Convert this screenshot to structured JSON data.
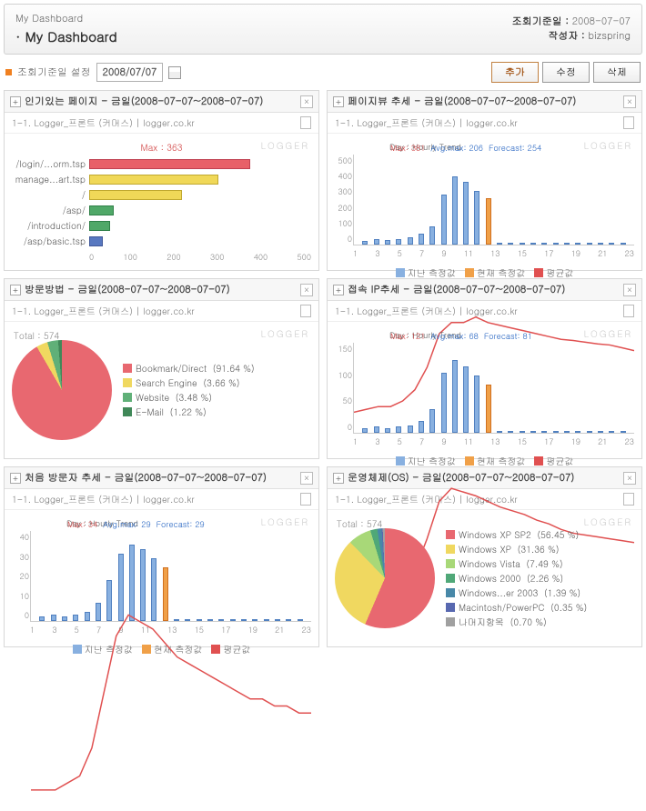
{
  "header": {
    "breadcrumb": "My Dashboard",
    "title": "My Dashboard",
    "refDateLabel": "조회기준일 :",
    "refDate": "2008-07-07",
    "authorLabel": "작성자 :",
    "author": "bizspring"
  },
  "toolbar": {
    "dateLabel": "조회기준일 설정",
    "dateValue": "2008/07/07",
    "add": "추가",
    "edit": "수정",
    "del": "삭제"
  },
  "watermark": "LOGGER",
  "panels": {
    "p1": {
      "title": "인기있는 페이지 - 금일(2008-07-07~2008-07-07)",
      "sub": "1-1. Logger_프론트 (커머스) | logger.co.kr",
      "maxLabel": "Max : 363",
      "bars": [
        {
          "label": "/login/...orm.tsp",
          "value": 363,
          "color": "#e86068",
          "border": "#c04050"
        },
        {
          "label": "manage...art.tsp",
          "value": 290,
          "color": "#f0d858",
          "border": "#c0a830"
        },
        {
          "label": "/",
          "value": 210,
          "color": "#f0d858",
          "border": "#c0a830"
        },
        {
          "label": "/asp/",
          "value": 55,
          "color": "#50a868",
          "border": "#308048"
        },
        {
          "label": "/introduction/",
          "value": 48,
          "color": "#50a868",
          "border": "#308048"
        },
        {
          "label": "/asp/basic.tsp",
          "value": 30,
          "color": "#5878c0",
          "border": "#405898"
        }
      ],
      "axisMax": 500,
      "axisTicks": [
        "0",
        "100",
        "200",
        "300",
        "400",
        "500"
      ]
    },
    "p2": {
      "title": "페이지뷰 추세 - 금일(2008-07-07~2008-07-07)",
      "sub": "1-1. Logger_프론트 (커머스) | logger.co.kr",
      "trendLabel": "Day : Hourly Trend",
      "stats": [
        {
          "t": "Max: 381",
          "c": "#d04040"
        },
        {
          "t": "Avg.max: 206",
          "c": "#2060c0"
        },
        {
          "t": "Forecast: 254",
          "c": "#2060c0"
        }
      ],
      "yMax": 500,
      "yTicks": [
        "0",
        "100",
        "200",
        "300",
        "400",
        "500"
      ],
      "xTicks": [
        "1",
        "3",
        "5",
        "7",
        "9",
        "11",
        "13",
        "15",
        "17",
        "19",
        "21",
        "23"
      ],
      "bars": [
        20,
        30,
        25,
        30,
        40,
        60,
        100,
        280,
        381,
        350,
        300,
        260,
        0,
        0,
        0,
        0,
        0,
        0,
        0,
        0,
        0,
        0,
        0,
        0
      ],
      "currentIdx": 11,
      "line": [
        40,
        45,
        50,
        50,
        60,
        80,
        120,
        180,
        200,
        200,
        210,
        200,
        195,
        190,
        185,
        180,
        175,
        170,
        168,
        165,
        162,
        160,
        155,
        150
      ],
      "barColor": "#88b0e0",
      "barBorder": "#5080c0",
      "curColor": "#f0a048",
      "lineColor": "#e05050"
    },
    "p3": {
      "title": "방문방법 - 금일(2008-07-07~2008-07-07)",
      "sub": "1-1. Logger_프론트 (커머스) | logger.co.kr",
      "total": "Total : 574",
      "slices": [
        {
          "label": "Bookmark/Direct",
          "pct": 91.64,
          "color": "#e86870"
        },
        {
          "label": "Search Engine",
          "pct": 3.66,
          "color": "#f0d860"
        },
        {
          "label": "Website",
          "pct": 3.48,
          "color": "#60b078"
        },
        {
          "label": "E-Mail",
          "pct": 1.22,
          "color": "#408858"
        }
      ]
    },
    "p4": {
      "title": "접속 IP추세 - 금일(2008-07-07~2008-07-07)",
      "sub": "1-1. Logger_프론트 (커머스) | logger.co.kr",
      "trendLabel": "Day : Hourly Trend",
      "stats": [
        {
          "t": "Max: 121",
          "c": "#d04040"
        },
        {
          "t": "Avg.max: 68",
          "c": "#2060c0"
        },
        {
          "t": "Forecast: 81",
          "c": "#2060c0"
        }
      ],
      "yMax": 150,
      "yTicks": [
        "0",
        "50",
        "100",
        "150"
      ],
      "xTicks": [
        "1",
        "3",
        "5",
        "7",
        "9",
        "11",
        "13",
        "15",
        "17",
        "19",
        "21",
        "23"
      ],
      "bars": [
        8,
        10,
        8,
        10,
        12,
        20,
        40,
        100,
        121,
        110,
        95,
        80,
        0,
        0,
        0,
        0,
        0,
        0,
        0,
        0,
        0,
        0,
        0,
        0
      ],
      "currentIdx": 11,
      "line": [
        15,
        16,
        17,
        18,
        20,
        28,
        45,
        65,
        72,
        70,
        68,
        65,
        62,
        60,
        58,
        55,
        53,
        50,
        48,
        47,
        46,
        45,
        44,
        43
      ],
      "barColor": "#88b0e0",
      "barBorder": "#5080c0",
      "curColor": "#f0a048",
      "lineColor": "#e05050"
    },
    "p5": {
      "title": "처음 방문자 추세 - 금일(2008-07-07~2008-07-07)",
      "sub": "1-1. Logger_프론트 (커머스) | logger.co.kr",
      "trendLabel": "Day : Hourly Trend",
      "stats": [
        {
          "t": "Max: 34",
          "c": "#d04040"
        },
        {
          "t": "Avg.max: 29",
          "c": "#2060c0"
        },
        {
          "t": "Forecast: 29",
          "c": "#2060c0"
        }
      ],
      "yMax": 40,
      "yTicks": [
        "0",
        "10",
        "20",
        "30",
        "40"
      ],
      "xTicks": [
        "1",
        "3",
        "5",
        "7",
        "9",
        "11",
        "13",
        "15",
        "17",
        "19",
        "21",
        "23"
      ],
      "bars": [
        2,
        3,
        2,
        3,
        4,
        8,
        18,
        30,
        34,
        32,
        28,
        24,
        0,
        0,
        0,
        0,
        0,
        0,
        0,
        0,
        0,
        0,
        0,
        0
      ],
      "currentIdx": 11,
      "line": [
        3,
        3,
        3,
        4,
        5,
        9,
        17,
        25,
        28,
        27,
        26,
        24,
        22,
        21,
        20,
        19,
        18,
        17,
        16,
        16,
        15,
        15,
        14,
        14
      ],
      "barColor": "#88b0e0",
      "barBorder": "#5080c0",
      "curColor": "#f0a048",
      "lineColor": "#e05050"
    },
    "p6": {
      "title": "운영체제(OS) - 금일(2008-07-07~2008-07-07)",
      "sub": "1-1. Logger_프론트 (커머스) | logger.co.kr",
      "total": "Total : 574",
      "slices": [
        {
          "label": "Windows XP SP2",
          "pct": 56.45,
          "color": "#e86870"
        },
        {
          "label": "Windows XP",
          "pct": 31.36,
          "color": "#f0d860"
        },
        {
          "label": "Windows Vista",
          "pct": 7.49,
          "color": "#a8d878"
        },
        {
          "label": "Windows 2000",
          "pct": 2.26,
          "color": "#50a878"
        },
        {
          "label": "Windows...er 2003",
          "pct": 1.39,
          "color": "#4888a8"
        },
        {
          "label": "Macintosh/PowerPC",
          "pct": 0.35,
          "color": "#5868b0"
        },
        {
          "label": "나머지항목",
          "pct": 0.7,
          "color": "#a0a0a0"
        }
      ]
    }
  },
  "trendLegend": {
    "past": "지난 측정값",
    "current": "현재 측정값",
    "avg": "평균값"
  }
}
